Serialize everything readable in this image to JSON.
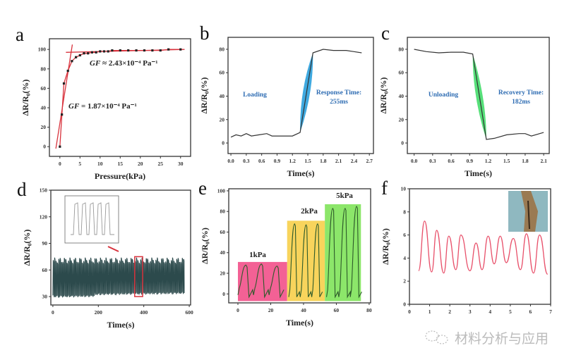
{
  "watermark": "材料分析与应用",
  "colors": {
    "fit_line": "#d8323c",
    "points": "#222222",
    "trace": "#333333",
    "response_fill": "#3fa9e0",
    "recovery_fill": "#57e07a",
    "cycle_trace": "#2c4a4c",
    "box_1kPa": "#f2508a",
    "box_2kPa": "#f7cf4a",
    "box_5kPa": "#7fe35a",
    "f_trace": "#e8506a",
    "annotation": "#2f6db3"
  },
  "chart_data": [
    {
      "panel": "a",
      "type": "scatter",
      "ylabel": "ΔR/R₀(%)",
      "xlabel": "Pressure(kPa)",
      "xlim": [
        -2.6,
        32.5
      ],
      "ylim": [
        -10,
        111
      ],
      "xticks": [
        0,
        5,
        10,
        15,
        20,
        25,
        30
      ],
      "yticks": [
        0,
        20,
        40,
        60,
        80,
        100
      ],
      "x": [
        0,
        0.5,
        1,
        2,
        3,
        4,
        5,
        6,
        7,
        8,
        9,
        10,
        11,
        12,
        13,
        15,
        17,
        19,
        21,
        23,
        25,
        27,
        30
      ],
      "y": [
        0,
        33,
        65,
        78,
        88,
        92,
        94,
        96,
        96,
        97,
        97,
        98,
        98,
        98,
        99,
        99,
        99,
        99,
        99,
        99,
        99,
        100,
        100
      ],
      "fits": [
        {
          "x": [
            -1,
            3.1
          ],
          "y": [
            -2,
            105
          ]
        },
        {
          "x": [
            1.5,
            31
          ],
          "y": [
            97,
            100
          ]
        }
      ],
      "annotations": [
        {
          "symbol": "GF",
          "text": " ≈ 2.43×10⁻⁴ Pa⁻¹"
        },
        {
          "symbol": "GF",
          "text": " = 1.87×10⁻⁴ Pa⁻¹"
        }
      ]
    },
    {
      "panel": "b",
      "type": "line",
      "ylabel": "ΔR/R₀(%)",
      "xlabel": "Time(s)",
      "xlim": [
        -0.056,
        2.78
      ],
      "ylim": [
        -9,
        90.2
      ],
      "xticks": [
        0.0,
        0.3,
        0.6,
        0.9,
        1.2,
        1.5,
        1.8,
        2.1,
        2.4,
        2.7
      ],
      "yticks": [
        0,
        20,
        40,
        60,
        80
      ],
      "x": [
        0,
        0.1,
        0.2,
        0.3,
        0.4,
        0.55,
        0.7,
        0.8,
        1.0,
        1.2,
        1.35,
        1.6,
        1.8,
        2.0,
        2.25,
        2.4,
        2.55
      ],
      "y": [
        5,
        7,
        6,
        8,
        6,
        7,
        8,
        6,
        6,
        6,
        9,
        77,
        80,
        79,
        79,
        78,
        77
      ],
      "shaded": [
        1.35,
        1.6
      ],
      "labels": [
        "Loading",
        "Response Time:",
        "255ms"
      ]
    },
    {
      "panel": "c",
      "type": "line",
      "ylabel": "ΔR/R₀(%)",
      "xlabel": "Time(s)",
      "xlim": [
        -0.11,
        2.19
      ],
      "ylim": [
        -9,
        90.2
      ],
      "xticks": [
        0.0,
        0.3,
        0.6,
        0.9,
        1.2,
        1.5,
        1.8,
        2.1
      ],
      "yticks": [
        0,
        20,
        40,
        60,
        80
      ],
      "x": [
        0,
        0.2,
        0.4,
        0.6,
        0.8,
        0.95,
        1.17,
        1.3,
        1.5,
        1.7,
        1.8,
        1.9,
        2.1
      ],
      "y": [
        80,
        78,
        77,
        77.5,
        77.5,
        76,
        3,
        4,
        7,
        8,
        8,
        6,
        9
      ],
      "shaded": [
        0.95,
        1.17
      ],
      "labels": [
        "Unloading",
        "Recovery Time:",
        "182ms"
      ]
    },
    {
      "panel": "d",
      "type": "line",
      "ylabel": "ΔR/R₀(%)",
      "xlabel": "Time(s)",
      "xlim": [
        -9,
        606
      ],
      "ylim": [
        20.5,
        150
      ],
      "xticks": [
        0,
        200,
        400,
        600
      ],
      "yticks": [
        30,
        60,
        90,
        120,
        150
      ],
      "signal_range": [
        32,
        73
      ],
      "duration": 580,
      "cycles": 95,
      "highlight": [
        360,
        395
      ],
      "inset": "zoomed cycles"
    },
    {
      "panel": "e",
      "type": "line",
      "ylabel": "ΔR/R₀(%)",
      "xlabel": "Time(s)",
      "xlim": [
        -5.6,
        80.9
      ],
      "ylim": [
        -8.7,
        102
      ],
      "xticks": [
        0,
        20,
        40,
        60,
        80
      ],
      "yticks": [
        0,
        20,
        40,
        60,
        80,
        100
      ],
      "groups": [
        {
          "label": "1kPa",
          "range": [
            0,
            30
          ],
          "top": 31,
          "starts": [
            0,
            9.5,
            19
          ],
          "duration": 9,
          "peaks": [
            28,
            29,
            27
          ]
        },
        {
          "label": "2kPa",
          "range": [
            30,
            53
          ],
          "top": 71,
          "starts": [
            31,
            38,
            45
          ],
          "duration": 6.5,
          "peaks": [
            68,
            67,
            68
          ]
        },
        {
          "label": "5kPa",
          "range": [
            53,
            75
          ],
          "top": 87,
          "starts": [
            54,
            61.5,
            68.5
          ],
          "duration": 7,
          "peaks": [
            83,
            83,
            85
          ]
        }
      ]
    },
    {
      "panel": "f",
      "type": "line",
      "ylabel": "ΔR/R₀(%)",
      "xlabel": "",
      "xlim": [
        0,
        7
      ],
      "ylim": [
        0,
        10
      ],
      "xticks": [
        0,
        1,
        2,
        3,
        4,
        5,
        6,
        7
      ],
      "yticks": [
        0,
        2,
        4,
        6,
        8,
        10
      ],
      "x": [
        0.45,
        0.75,
        1.1,
        1.35,
        1.7,
        1.95,
        2.3,
        2.55,
        3.0,
        3.3,
        3.6,
        3.9,
        4.2,
        4.5,
        4.8,
        5.15,
        5.5,
        5.8,
        6.15,
        6.45,
        6.85
      ],
      "y": [
        2.9,
        7.2,
        2.8,
        6.4,
        2.7,
        5.9,
        3.0,
        6.0,
        2.9,
        5.3,
        3.0,
        5.9,
        3.5,
        5.9,
        3.6,
        5.7,
        3.0,
        6.1,
        2.7,
        6.0,
        2.6
      ],
      "inset": "photo"
    }
  ]
}
